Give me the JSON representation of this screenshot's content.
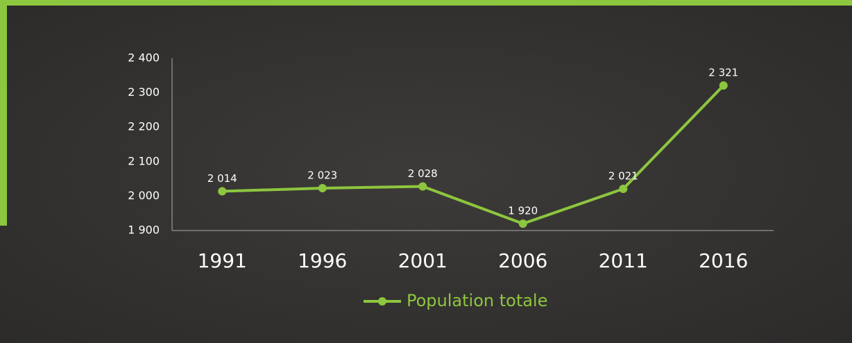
{
  "chart_data": {
    "type": "line",
    "categories": [
      "1991",
      "1996",
      "2001",
      "2006",
      "2011",
      "2016"
    ],
    "series": [
      {
        "name": "Population totale",
        "color": "#8dc63f",
        "values": [
          2014,
          2023,
          2028,
          1920,
          2021,
          2321
        ],
        "value_labels": [
          "2 014",
          "2 023",
          "2 028",
          "1 920",
          "2 021",
          "2 321"
        ]
      }
    ],
    "ylim": [
      1900,
      2400
    ],
    "yticks": [
      {
        "value": 1900,
        "label": "1 900"
      },
      {
        "value": 2000,
        "label": "2 000"
      },
      {
        "value": 2100,
        "label": "2 100"
      },
      {
        "value": 2200,
        "label": "2 200"
      },
      {
        "value": 2300,
        "label": "2 300"
      },
      {
        "value": 2400,
        "label": "2 400"
      }
    ],
    "grid": false,
    "legend": "bottom"
  }
}
